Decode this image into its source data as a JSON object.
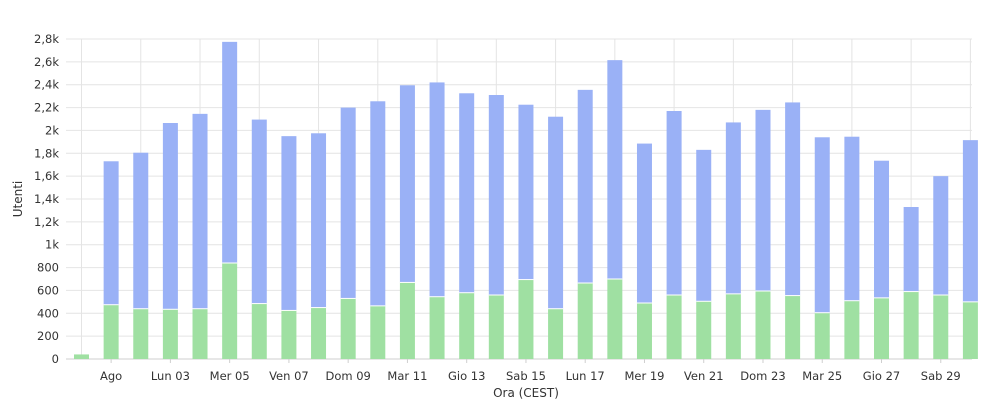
{
  "chart_data": {
    "type": "bar",
    "stacked": true,
    "xlabel": "Ora (CEST)",
    "ylabel": "Utenti",
    "ylim": [
      0,
      2800
    ],
    "grid": true,
    "yticks": [
      {
        "value": 0,
        "label": "0"
      },
      {
        "value": 200,
        "label": "200"
      },
      {
        "value": 400,
        "label": "400"
      },
      {
        "value": 600,
        "label": "600"
      },
      {
        "value": 800,
        "label": "800"
      },
      {
        "value": 1000,
        "label": "1k"
      },
      {
        "value": 1200,
        "label": "1,2k"
      },
      {
        "value": 1400,
        "label": "1,4k"
      },
      {
        "value": 1600,
        "label": "1,6k"
      },
      {
        "value": 1800,
        "label": "1,8k"
      },
      {
        "value": 2000,
        "label": "2k"
      },
      {
        "value": 2200,
        "label": "2,2k"
      },
      {
        "value": 2400,
        "label": "2,4k"
      },
      {
        "value": 2600,
        "label": "2,6k"
      },
      {
        "value": 2800,
        "label": "2,8k"
      }
    ],
    "xticks": [
      {
        "index": 1,
        "label": "Ago"
      },
      {
        "index": 3,
        "label": "Lun 03"
      },
      {
        "index": 5,
        "label": "Mer 05"
      },
      {
        "index": 7,
        "label": "Ven 07"
      },
      {
        "index": 9,
        "label": "Dom 09"
      },
      {
        "index": 11,
        "label": "Mar 11"
      },
      {
        "index": 13,
        "label": "Gio 13"
      },
      {
        "index": 15,
        "label": "Sab 15"
      },
      {
        "index": 17,
        "label": "Lun 17"
      },
      {
        "index": 19,
        "label": "Mer 19"
      },
      {
        "index": 21,
        "label": "Ven 21"
      },
      {
        "index": 23,
        "label": "Dom 23"
      },
      {
        "index": 25,
        "label": "Mar 25"
      },
      {
        "index": 27,
        "label": "Gio 27"
      },
      {
        "index": 29,
        "label": "Sab 29"
      }
    ],
    "bar_count": 31,
    "series": [
      {
        "color": "#9fe0a2",
        "values": [
          40,
          475,
          440,
          435,
          440,
          840,
          485,
          425,
          450,
          530,
          465,
          670,
          545,
          580,
          560,
          695,
          440,
          665,
          700,
          490,
          560,
          505,
          570,
          595,
          555,
          405,
          510,
          535,
          590,
          560,
          500
        ]
      },
      {
        "color": "#9ab1f6",
        "values": [
          0,
          1255,
          1365,
          1630,
          1705,
          1935,
          1610,
          1525,
          1525,
          1670,
          1790,
          1725,
          1875,
          1745,
          1750,
          1530,
          1680,
          1690,
          1915,
          1395,
          1610,
          1325,
          1500,
          1585,
          1690,
          1535,
          1435,
          1200,
          740,
          1040,
          1415
        ]
      }
    ]
  }
}
